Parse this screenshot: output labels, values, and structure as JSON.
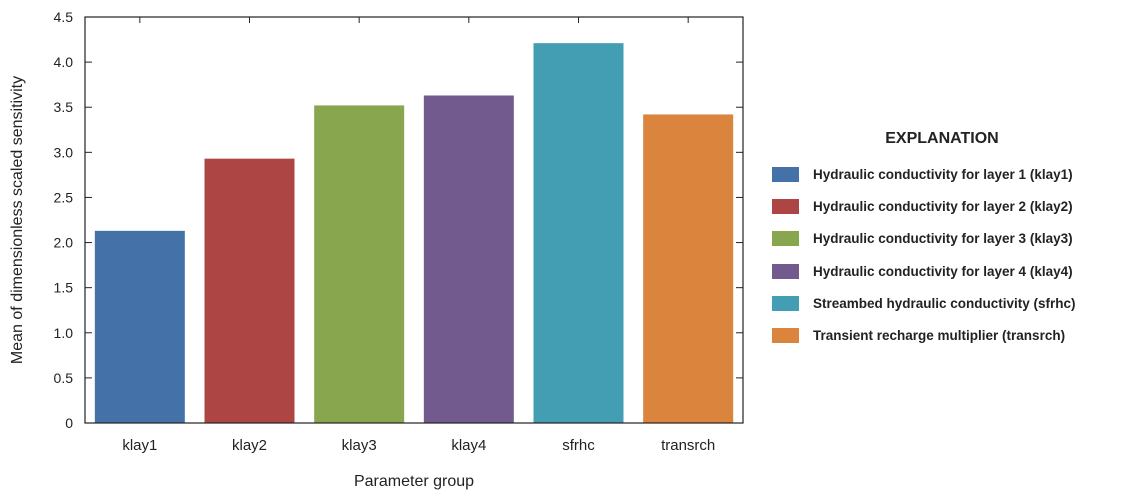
{
  "chart_data": {
    "type": "bar",
    "xlabel": "Parameter group",
    "ylabel": "Mean of dimensionless scaled sensitivity",
    "ylim": [
      0,
      4.5
    ],
    "yticks": [
      "0",
      "0.5",
      "1.0",
      "1.5",
      "2.0",
      "2.5",
      "3.0",
      "3.5",
      "4.0",
      "4.5"
    ],
    "categories": [
      "klay1",
      "klay2",
      "klay3",
      "klay4",
      "sfrhc",
      "transrch"
    ],
    "values": [
      2.13,
      2.93,
      3.52,
      3.63,
      4.21,
      3.42
    ],
    "colors": [
      "#4472a8",
      "#ad4545",
      "#88a64e",
      "#725a8e",
      "#439db3",
      "#db843d"
    ],
    "grid": false,
    "legend": {
      "placement": "right",
      "title": "EXPLANATION",
      "entries": [
        "Hydraulic conductivity for layer 1 (klay1)",
        "Hydraulic conductivity for layer 2 (klay2)",
        "Hydraulic conductivity for layer 3 (klay3)",
        "Hydraulic conductivity for layer 4 (klay4)",
        "Streambed hydraulic conductivity (sfrhc)",
        "Transient recharge multiplier (transrch)"
      ]
    }
  }
}
